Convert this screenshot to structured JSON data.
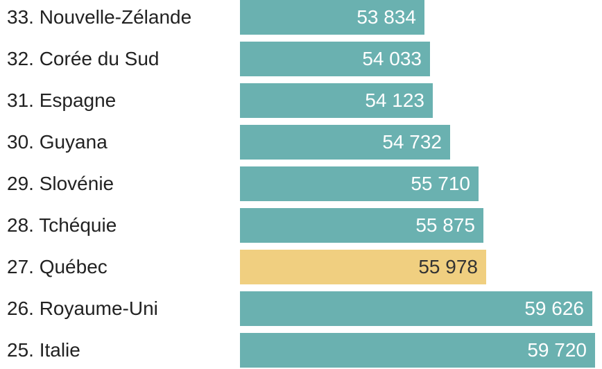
{
  "chart_data": {
    "type": "bar",
    "orientation": "horizontal",
    "categories": [
      "33. Nouvelle-Zélande",
      "32. Corée du Sud",
      "31. Espagne",
      "30. Guyana",
      "29. Slovénie",
      "28. Tchéquie",
      "27. Québec",
      "26. Royaume-Uni",
      "25. Italie"
    ],
    "values": [
      53834,
      54033,
      54123,
      54732,
      55710,
      55875,
      55978,
      59626,
      59720
    ],
    "value_labels": [
      "53 834",
      "54 033",
      "54 123",
      "54 732",
      "55 710",
      "55 875",
      "55 978",
      "59 626",
      "59 720"
    ],
    "highlight_index": 6,
    "colors": {
      "bar": "#6ab1b0",
      "highlight": "#f0cf80",
      "value_text": "#ffffff",
      "highlight_text": "#333333"
    },
    "title": "",
    "xlabel": "",
    "ylabel": "",
    "grid": false,
    "legend": "none"
  }
}
